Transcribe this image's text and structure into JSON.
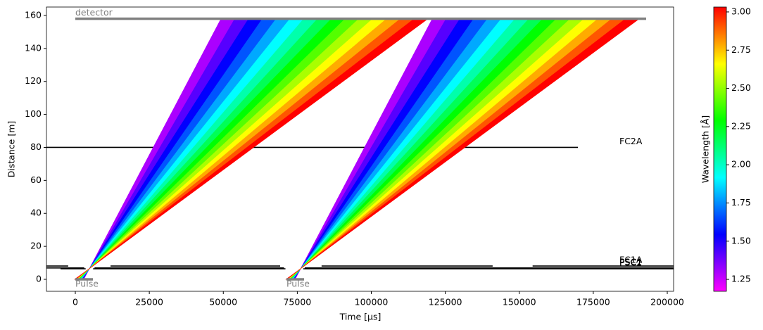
{
  "chart_data": {
    "type": "time-distance",
    "x_label": "Time [µs]",
    "y_label": "Distance [m]",
    "xlim": [
      -9750,
      202140
    ],
    "ylim": [
      -7.25,
      165.1
    ],
    "xticks": [
      0,
      25000,
      50000,
      75000,
      100000,
      125000,
      150000,
      175000,
      200000
    ],
    "yticks": [
      0,
      20,
      40,
      60,
      80,
      100,
      120,
      140,
      160
    ],
    "colormap": "hsv",
    "colorbar": {
      "label": "Wavelength [Å]",
      "clim": [
        1.172,
        3.032
      ],
      "ticks": [
        1.25,
        {
          "value": 1.5,
          "label": "1.50"
        },
        1.75,
        {
          "value": 2.0,
          "label": "2.00"
        },
        2.25,
        {
          "value": 2.5,
          "label": "2.50"
        },
        2.75,
        {
          "value": 3.0,
          "label": "3.00"
        }
      ]
    },
    "wavelengths": [
      1.17,
      1.294,
      1.418,
      1.542,
      1.666,
      1.79,
      1.914,
      2.038,
      2.162,
      2.286,
      2.41,
      2.534,
      2.658,
      2.782,
      2.906,
      3.03
    ],
    "detector": {
      "name": "detector",
      "distance": 158,
      "range": [
        0,
        192860
      ]
    },
    "frames": [
      {
        "name": "Pulse",
        "pulse": [
          0,
          5950
        ],
        "focus": {
          "time": 4760,
          "distance": 6.5
        },
        "emissions": [
          2838,
          2634,
          2430,
          2227,
          2023,
          1819,
          1615,
          1412,
          1208,
          1004,
          800,
          597,
          393,
          189,
          -15,
          -218
        ],
        "arrivals": [
          49230,
          53891,
          58552,
          63214,
          67875,
          72536,
          77197,
          81858,
          86520,
          91181,
          95842,
          100503,
          105164,
          109826,
          114487,
          119148
        ]
      },
      {
        "name": "Pulse",
        "pulse": [
          71340,
          77290
        ],
        "focus": {
          "time": 76160,
          "distance": 6.5
        },
        "emissions": [
          74238,
          74034,
          73830,
          73627,
          73423,
          73219,
          73015,
          72812,
          72608,
          72404,
          72200,
          71997,
          71793,
          71589,
          71385,
          71182
        ],
        "arrivals": [
          120630,
          125291,
          129952,
          134614,
          139275,
          143936,
          148597,
          153258,
          157920,
          162581,
          167242,
          171903,
          176564,
          181226,
          185887,
          190548
        ]
      }
    ],
    "choppers": [
      {
        "name": "FC2A",
        "distance": 80,
        "closed": [
          [
            -9750,
            169800
          ]
        ]
      },
      {
        "name": "FC1A",
        "distance": 8.1,
        "closed": [
          [
            -9750,
            -2400
          ],
          [
            11900,
            69200
          ],
          [
            83200,
            141000
          ],
          [
            154500,
            202140
          ]
        ]
      },
      {
        "name": "PSC1",
        "distance": 6.9,
        "closed": [
          [
            -9750,
            3000
          ],
          [
            6500,
            70500
          ],
          [
            77500,
            202140
          ]
        ]
      },
      {
        "name": "PSC2",
        "distance": 6.4,
        "closed": [
          [
            -5000,
            3500
          ],
          [
            6000,
            71000
          ],
          [
            77000,
            202140
          ]
        ]
      }
    ]
  }
}
